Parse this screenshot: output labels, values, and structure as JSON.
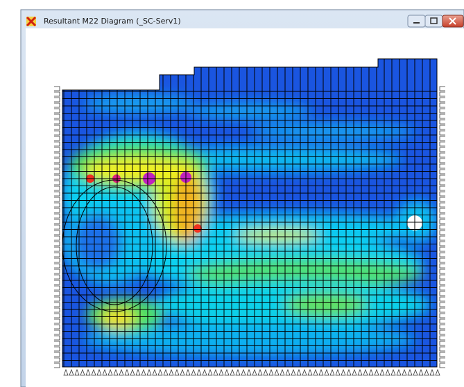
{
  "window": {
    "title": "Resultant M22 Diagram  (_SC-Serv1)"
  }
}
